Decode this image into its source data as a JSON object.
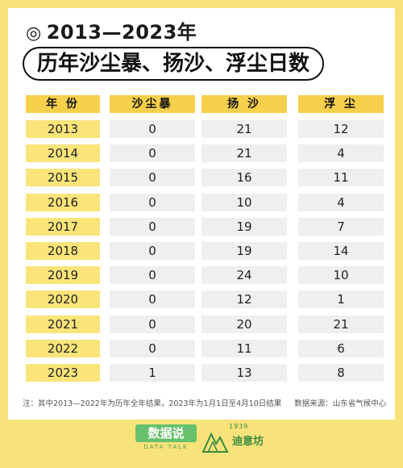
{
  "title": {
    "symbol": "◎",
    "line1": "2013—2023年",
    "line2": "历年沙尘暴、扬沙、浮尘日数"
  },
  "chart_data": {
    "type": "table",
    "columns": [
      "年 份",
      "沙尘暴",
      "扬 沙",
      "浮 尘"
    ],
    "rows": [
      {
        "year": "2013",
        "sandstorm": "0",
        "blowing_sand": "21",
        "floating_dust": "12"
      },
      {
        "year": "2014",
        "sandstorm": "0",
        "blowing_sand": "21",
        "floating_dust": "4"
      },
      {
        "year": "2015",
        "sandstorm": "0",
        "blowing_sand": "16",
        "floating_dust": "11"
      },
      {
        "year": "2016",
        "sandstorm": "0",
        "blowing_sand": "10",
        "floating_dust": "4"
      },
      {
        "year": "2017",
        "sandstorm": "0",
        "blowing_sand": "19",
        "floating_dust": "7"
      },
      {
        "year": "2018",
        "sandstorm": "0",
        "blowing_sand": "19",
        "floating_dust": "14"
      },
      {
        "year": "2019",
        "sandstorm": "0",
        "blowing_sand": "24",
        "floating_dust": "10"
      },
      {
        "year": "2020",
        "sandstorm": "0",
        "blowing_sand": "12",
        "floating_dust": "1"
      },
      {
        "year": "2021",
        "sandstorm": "0",
        "blowing_sand": "20",
        "floating_dust": "21"
      },
      {
        "year": "2022",
        "sandstorm": "0",
        "blowing_sand": "11",
        "floating_dust": "6"
      },
      {
        "year": "2023",
        "sandstorm": "1",
        "blowing_sand": "13",
        "floating_dust": "8"
      }
    ]
  },
  "note": {
    "text": "注：其中2013—2022年为历年全年结果，2023年为1月1日至4月10日结果",
    "source": "数据来源：山东省气候中心"
  },
  "footer": {
    "logo1_main": "数据说",
    "logo1_sub": "DATA TALK",
    "logo2_year": "1939",
    "logo2_name": "迪意坊"
  },
  "colors": {
    "background": "#f7e37a",
    "header": "#f6cf4b",
    "year_cell": "#fbe47a",
    "value_cell": "#efefef",
    "logo_green": "#67c06b"
  }
}
